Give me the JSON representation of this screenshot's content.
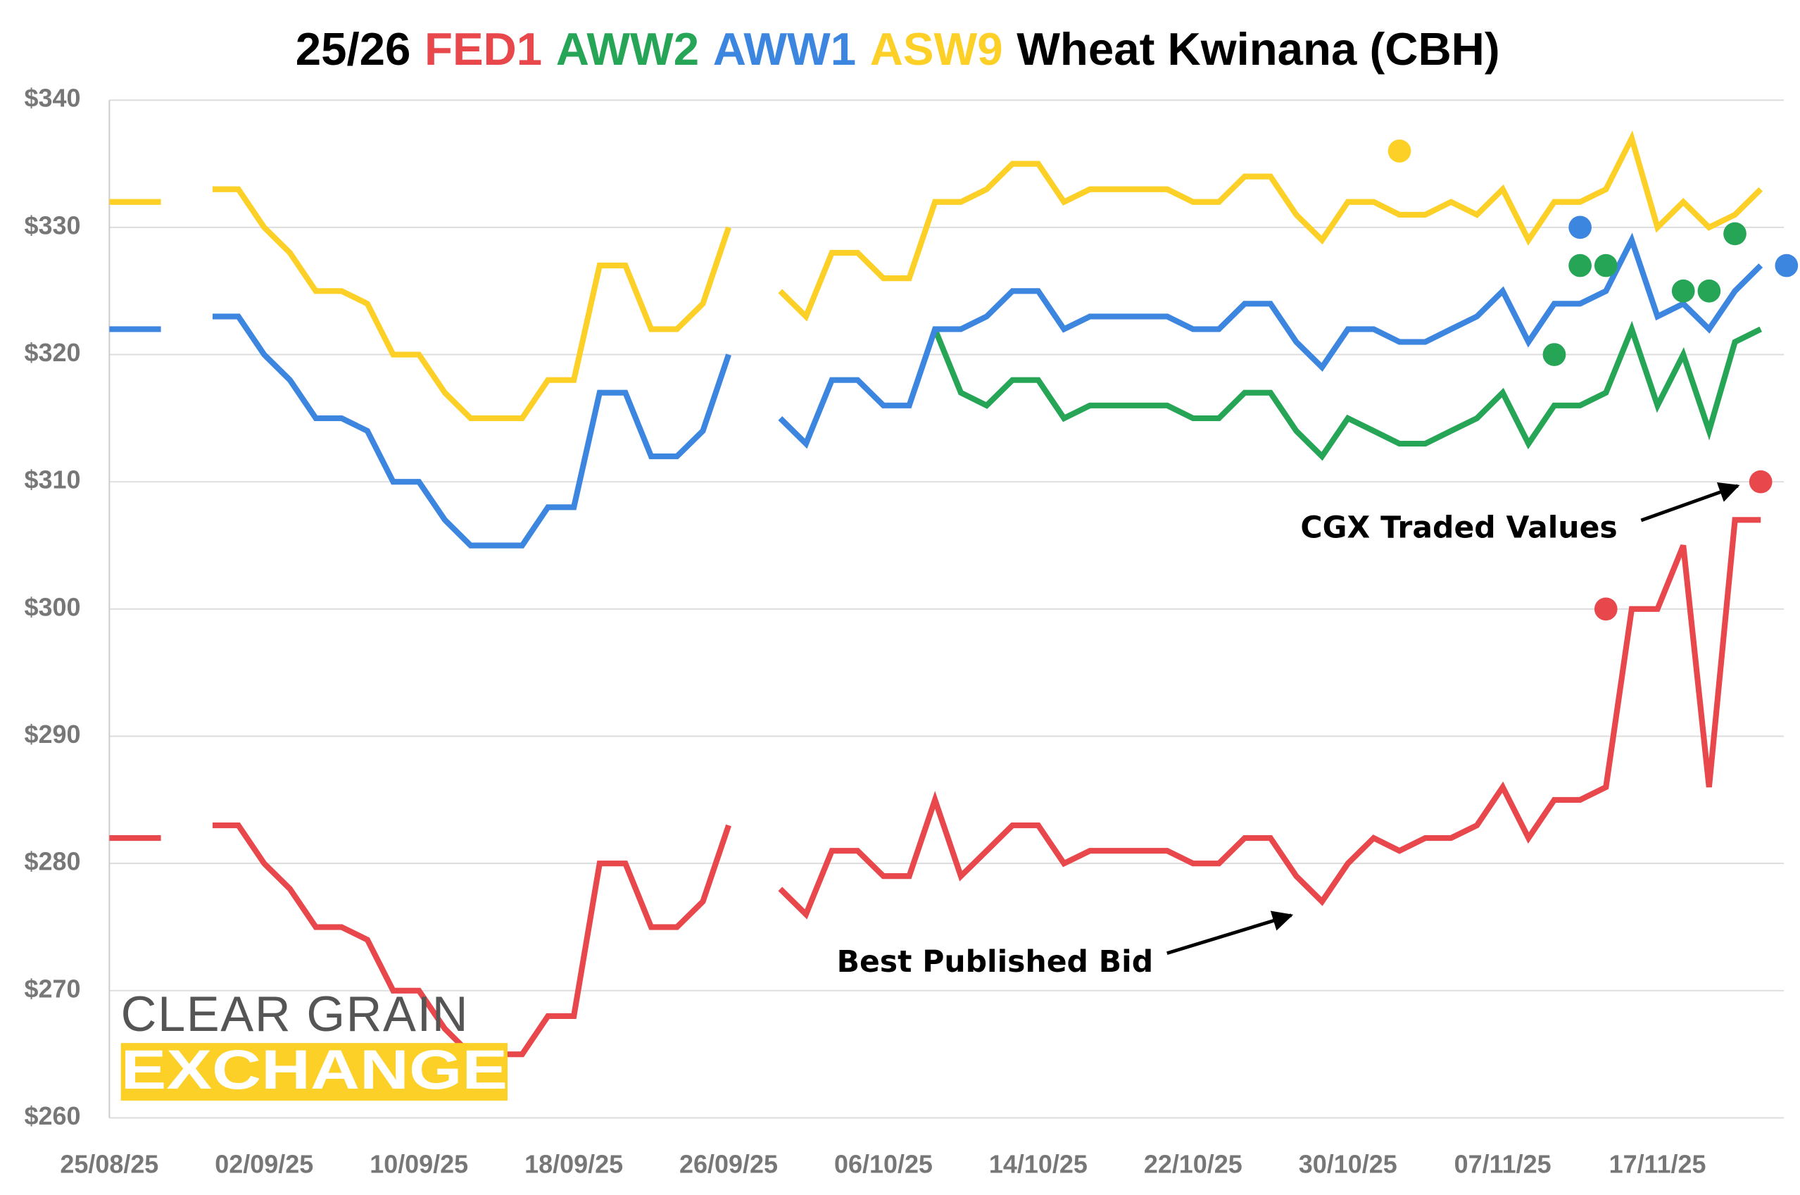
{
  "chart_data": {
    "type": "line",
    "title_prefix": "25/26",
    "title_suffix": "Wheat Kwinana (CBH)",
    "categories": [
      "25/08/25",
      null,
      null,
      null,
      null,
      null,
      "02/09/25",
      null,
      null,
      null,
      null,
      null,
      "10/09/25",
      null,
      null,
      null,
      null,
      null,
      "18/09/25",
      null,
      null,
      null,
      null,
      null,
      "26/09/25",
      null,
      null,
      null,
      null,
      null,
      "06/10/25",
      null,
      null,
      null,
      null,
      null,
      "14/10/25",
      null,
      null,
      null,
      null,
      null,
      "22/10/25",
      null,
      null,
      null,
      null,
      null,
      "30/10/25",
      null,
      null,
      null,
      null,
      null,
      "07/11/25",
      null,
      null,
      null,
      null,
      null,
      "17/11/25",
      null,
      null,
      null,
      null,
      null
    ],
    "series": [
      {
        "name": "FED1",
        "color": "#e8474b",
        "values": [
          282,
          282,
          282,
          null,
          283,
          283,
          280,
          278,
          275,
          275,
          274,
          270,
          270,
          267,
          265,
          265,
          265,
          268,
          268,
          280,
          280,
          275,
          275,
          277,
          283,
          null,
          278,
          276,
          281,
          281,
          279,
          279,
          285,
          279,
          281,
          283,
          283,
          280,
          281,
          281,
          281,
          281,
          280,
          280,
          282,
          282,
          279,
          277,
          280,
          282,
          281,
          282,
          282,
          283,
          286,
          282,
          285,
          285,
          286,
          300,
          300,
          305,
          286,
          307,
          307,
          null
        ]
      },
      {
        "name": "AWW2",
        "color": "#27a556",
        "values": [
          null,
          null,
          null,
          null,
          null,
          null,
          null,
          null,
          null,
          null,
          null,
          null,
          null,
          null,
          null,
          null,
          null,
          null,
          null,
          null,
          null,
          null,
          null,
          null,
          null,
          null,
          null,
          null,
          null,
          null,
          null,
          null,
          322,
          317,
          316,
          318,
          318,
          315,
          316,
          316,
          316,
          316,
          315,
          315,
          317,
          317,
          314,
          312,
          315,
          314,
          313,
          313,
          314,
          315,
          317,
          313,
          316,
          316,
          317,
          322,
          316,
          320,
          314,
          321,
          322,
          null
        ]
      },
      {
        "name": "AWW1",
        "color": "#3c86e0",
        "values": [
          322,
          322,
          322,
          null,
          323,
          323,
          320,
          318,
          315,
          315,
          314,
          310,
          310,
          307,
          305,
          305,
          305,
          308,
          308,
          317,
          317,
          312,
          312,
          314,
          320,
          null,
          315,
          313,
          318,
          318,
          316,
          316,
          322,
          322,
          323,
          325,
          325,
          322,
          323,
          323,
          323,
          323,
          322,
          322,
          324,
          324,
          321,
          319,
          322,
          322,
          321,
          321,
          322,
          323,
          325,
          321,
          324,
          324,
          325,
          329,
          323,
          324,
          322,
          325,
          327,
          null
        ]
      },
      {
        "name": "ASW9",
        "color": "#fcd027",
        "values": [
          332,
          332,
          332,
          null,
          333,
          333,
          330,
          328,
          325,
          325,
          324,
          320,
          320,
          317,
          315,
          315,
          315,
          318,
          318,
          327,
          327,
          322,
          322,
          324,
          330,
          null,
          325,
          323,
          328,
          328,
          326,
          326,
          332,
          332,
          333,
          335,
          335,
          332,
          333,
          333,
          333,
          333,
          332,
          332,
          334,
          334,
          331,
          329,
          332,
          332,
          331,
          331,
          332,
          331,
          333,
          329,
          332,
          332,
          333,
          337,
          330,
          332,
          330,
          331,
          333,
          null
        ]
      }
    ],
    "traded": [
      {
        "color": "#e8474b",
        "values": [
          null,
          null,
          null,
          null,
          null,
          null,
          null,
          null,
          null,
          null,
          null,
          null,
          null,
          null,
          null,
          null,
          null,
          null,
          null,
          null,
          null,
          null,
          null,
          null,
          null,
          null,
          null,
          null,
          null,
          null,
          null,
          null,
          null,
          null,
          null,
          null,
          null,
          null,
          null,
          null,
          null,
          null,
          null,
          null,
          null,
          null,
          null,
          null,
          null,
          null,
          null,
          null,
          null,
          null,
          null,
          null,
          null,
          null,
          300,
          null,
          null,
          null,
          null,
          null,
          310,
          null
        ]
      },
      {
        "color": "#27a556",
        "values": [
          null,
          null,
          null,
          null,
          null,
          null,
          null,
          null,
          null,
          null,
          null,
          null,
          null,
          null,
          null,
          null,
          null,
          null,
          null,
          null,
          null,
          null,
          null,
          null,
          null,
          null,
          null,
          null,
          null,
          null,
          null,
          null,
          null,
          null,
          null,
          null,
          null,
          null,
          null,
          null,
          null,
          null,
          null,
          null,
          null,
          null,
          null,
          null,
          null,
          null,
          null,
          null,
          null,
          null,
          null,
          null,
          320,
          327,
          327,
          null,
          null,
          325,
          325,
          329.5,
          null,
          null
        ]
      },
      {
        "color": "#3c86e0",
        "values": [
          null,
          null,
          null,
          null,
          null,
          null,
          null,
          null,
          null,
          null,
          null,
          null,
          null,
          null,
          null,
          null,
          null,
          null,
          null,
          null,
          null,
          null,
          null,
          null,
          null,
          null,
          null,
          null,
          null,
          null,
          null,
          null,
          null,
          null,
          null,
          null,
          null,
          null,
          null,
          null,
          null,
          null,
          null,
          null,
          null,
          null,
          null,
          null,
          null,
          null,
          null,
          null,
          null,
          null,
          null,
          null,
          null,
          330,
          null,
          null,
          null,
          null,
          null,
          null,
          null,
          327
        ]
      },
      {
        "color": "#fcd027",
        "values": [
          null,
          null,
          null,
          null,
          null,
          null,
          null,
          null,
          null,
          null,
          null,
          null,
          null,
          null,
          null,
          null,
          null,
          null,
          null,
          null,
          null,
          null,
          null,
          null,
          null,
          null,
          null,
          null,
          null,
          null,
          null,
          null,
          null,
          null,
          null,
          null,
          null,
          null,
          null,
          null,
          null,
          null,
          null,
          null,
          null,
          null,
          null,
          null,
          null,
          null,
          336,
          null,
          null,
          null,
          null,
          null,
          null,
          null,
          null,
          null,
          null,
          null,
          null,
          null,
          null,
          null
        ]
      }
    ],
    "ylim": [
      260,
      340
    ],
    "yticks": [
      {
        "value": 260,
        "label": "$260"
      },
      {
        "value": 270,
        "label": "$270"
      },
      {
        "value": 280,
        "label": "$280"
      },
      {
        "value": 290,
        "label": "$290"
      },
      {
        "value": 300,
        "label": "$300"
      },
      {
        "value": 310,
        "label": "$310"
      },
      {
        "value": 320,
        "label": "$320"
      },
      {
        "value": 330,
        "label": "$330"
      },
      {
        "value": 340,
        "label": "$340"
      }
    ],
    "grid": true,
    "annotations": [
      "Best Published Bid",
      "CGX Traded Values"
    ],
    "logo": [
      "CLEAR GRAIN",
      "EXCHANGE"
    ]
  }
}
